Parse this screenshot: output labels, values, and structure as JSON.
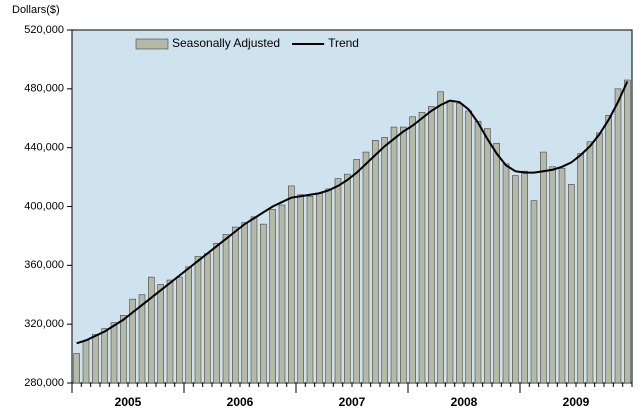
{
  "chart_data": {
    "type": "bar",
    "y_axis_label": "Dollars($)",
    "categories": [
      null,
      null,
      null,
      null,
      null,
      null,
      null,
      null,
      null,
      null,
      null,
      null,
      null,
      null,
      null,
      null,
      null,
      null,
      null,
      null,
      null,
      null,
      null,
      null,
      null,
      null,
      null,
      null,
      null,
      null,
      null,
      null,
      null,
      null,
      null,
      null,
      null,
      null,
      null,
      null,
      null,
      null,
      null,
      null,
      null,
      null,
      null,
      null,
      null,
      null,
      null,
      null,
      null,
      null,
      null,
      null,
      null,
      null,
      null,
      null
    ],
    "xgroups": [
      {
        "label": "2005",
        "count": 12
      },
      {
        "label": "2006",
        "count": 12
      },
      {
        "label": "2007",
        "count": 12
      },
      {
        "label": "2008",
        "count": 12
      },
      {
        "label": "2009",
        "count": 12
      }
    ],
    "series": [
      {
        "name": "Seasonally Adjusted",
        "type": "bar",
        "color": "#b5b9a6",
        "values": [
          300000,
          309000,
          313000,
          317000,
          321000,
          326000,
          337000,
          340000,
          352000,
          347000,
          350000,
          352000,
          359000,
          366000,
          368000,
          375000,
          381000,
          386000,
          389000,
          393000,
          388000,
          398000,
          401000,
          414000,
          408000,
          407000,
          409000,
          412000,
          419000,
          422000,
          432000,
          437000,
          445000,
          447000,
          454000,
          454000,
          461000,
          464000,
          468000,
          478000,
          472000,
          470000,
          465000,
          458000,
          453000,
          443000,
          429000,
          421000,
          424000,
          404000,
          437000,
          427000,
          426000,
          415000,
          436000,
          444000,
          450000,
          462000,
          480000,
          486000
        ]
      },
      {
        "name": "Trend",
        "type": "line",
        "color": "#000000",
        "values": [
          307000,
          309000,
          312000,
          315000,
          319000,
          323000,
          328000,
          333000,
          338000,
          343000,
          348000,
          353000,
          358000,
          363000,
          368000,
          373000,
          378000,
          383000,
          388000,
          392000,
          396000,
          400000,
          403000,
          406000,
          407000,
          408000,
          409000,
          411000,
          414000,
          418000,
          423000,
          429000,
          435000,
          441000,
          446000,
          451000,
          455000,
          460000,
          465000,
          469000,
          472000,
          471000,
          466000,
          457000,
          446000,
          436000,
          428000,
          424000,
          423000,
          423000,
          424000,
          425000,
          427000,
          430000,
          435000,
          441000,
          449000,
          459000,
          471000,
          485000
        ]
      }
    ],
    "ylim": [
      280000,
      520000
    ],
    "yticks": [
      {
        "value": 280000,
        "label": "280,000"
      },
      {
        "value": 320000,
        "label": "320,000"
      },
      {
        "value": 360000,
        "label": "360,000"
      },
      {
        "value": 400000,
        "label": "400,000"
      },
      {
        "value": 440000,
        "label": "440,000"
      },
      {
        "value": 480000,
        "label": "480,000"
      },
      {
        "value": 520000,
        "label": "520,000"
      }
    ],
    "grid": false,
    "background": "#cfe3ee",
    "legend": "top"
  }
}
